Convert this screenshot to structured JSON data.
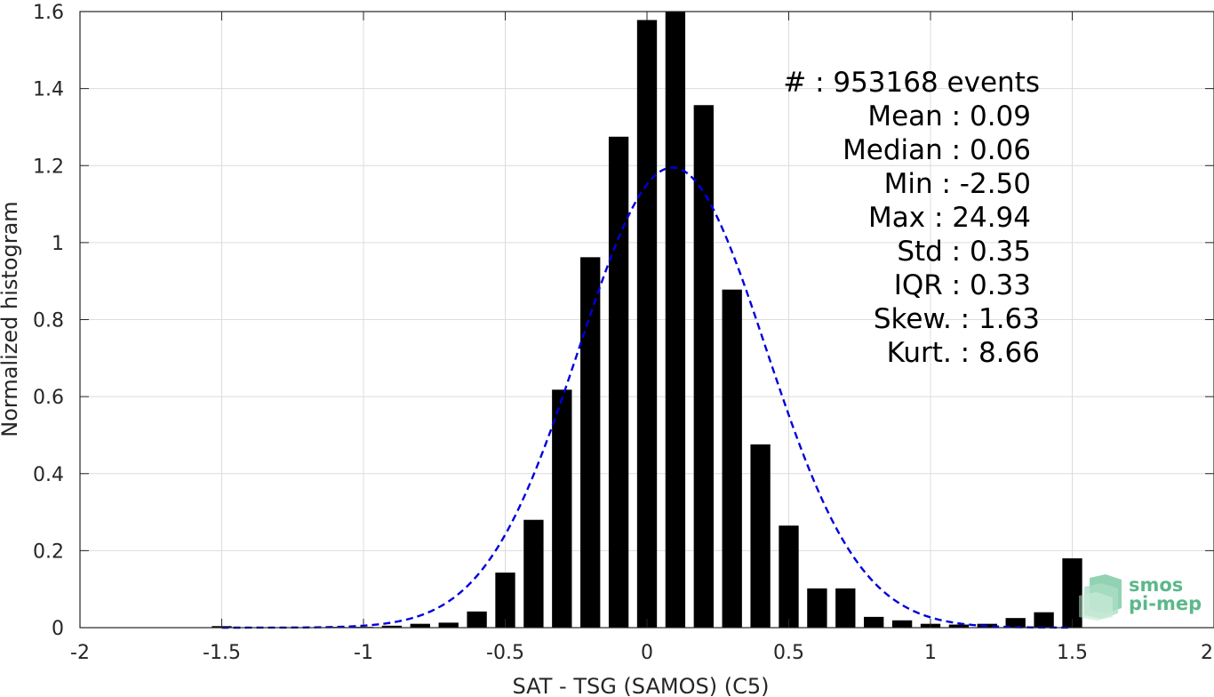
{
  "chart_data": {
    "type": "bar",
    "xlabel": "SAT - TSG (SAMOS) (C5)",
    "ylabel": "Normalized histogram",
    "xlim": [
      -2,
      2
    ],
    "ylim": [
      0,
      1.6
    ],
    "grid": true,
    "xticks": [
      "-2",
      "-1.5",
      "-1",
      "-0.5",
      "0",
      "0.5",
      "1",
      "1.5",
      "2"
    ],
    "yticks": [
      "0",
      "0.2",
      "0.4",
      "0.6",
      "0.8",
      "1",
      "1.2",
      "1.4",
      "1.6"
    ],
    "bar_color": "#000000",
    "bars": {
      "x": [
        -1.5,
        -1.4,
        -1.3,
        -1.2,
        -1.1,
        -1.0,
        -0.9,
        -0.8,
        -0.7,
        -0.6,
        -0.5,
        -0.4,
        -0.3,
        -0.2,
        -0.1,
        0.0,
        0.1,
        0.2,
        0.3,
        0.4,
        0.5,
        0.6,
        0.7,
        0.8,
        0.9,
        1.0,
        1.1,
        1.2,
        1.3,
        1.4,
        1.5
      ],
      "values": [
        0.004,
        0.001,
        0.001,
        0.001,
        0.002,
        0.002,
        0.005,
        0.01,
        0.013,
        0.042,
        0.143,
        0.28,
        0.618,
        0.962,
        1.275,
        1.578,
        1.6,
        1.357,
        0.878,
        0.476,
        0.265,
        0.102,
        0.102,
        0.028,
        0.019,
        0.01,
        0.008,
        0.01,
        0.025,
        0.04,
        0.18
      ]
    },
    "fit_curve": {
      "style": "dashed",
      "color": "#0000dd",
      "mean": 0.09,
      "std": 0.33,
      "peak": 1.195
    }
  },
  "stats": [
    {
      "label": "#  : 953168 events"
    },
    {
      "label": "Mean : 0.09"
    },
    {
      "label": "Median : 0.06"
    },
    {
      "label": "Min : -2.50"
    },
    {
      "label": "Max : 24.94"
    },
    {
      "label": "Std : 0.35"
    },
    {
      "label": "IQR : 0.33"
    },
    {
      "label": "Skew. : 1.63"
    },
    {
      "label": "Kurt. : 8.66"
    }
  ],
  "logo": {
    "line1": "smos",
    "line2": "pi-mep",
    "color": "#5cb88a"
  }
}
